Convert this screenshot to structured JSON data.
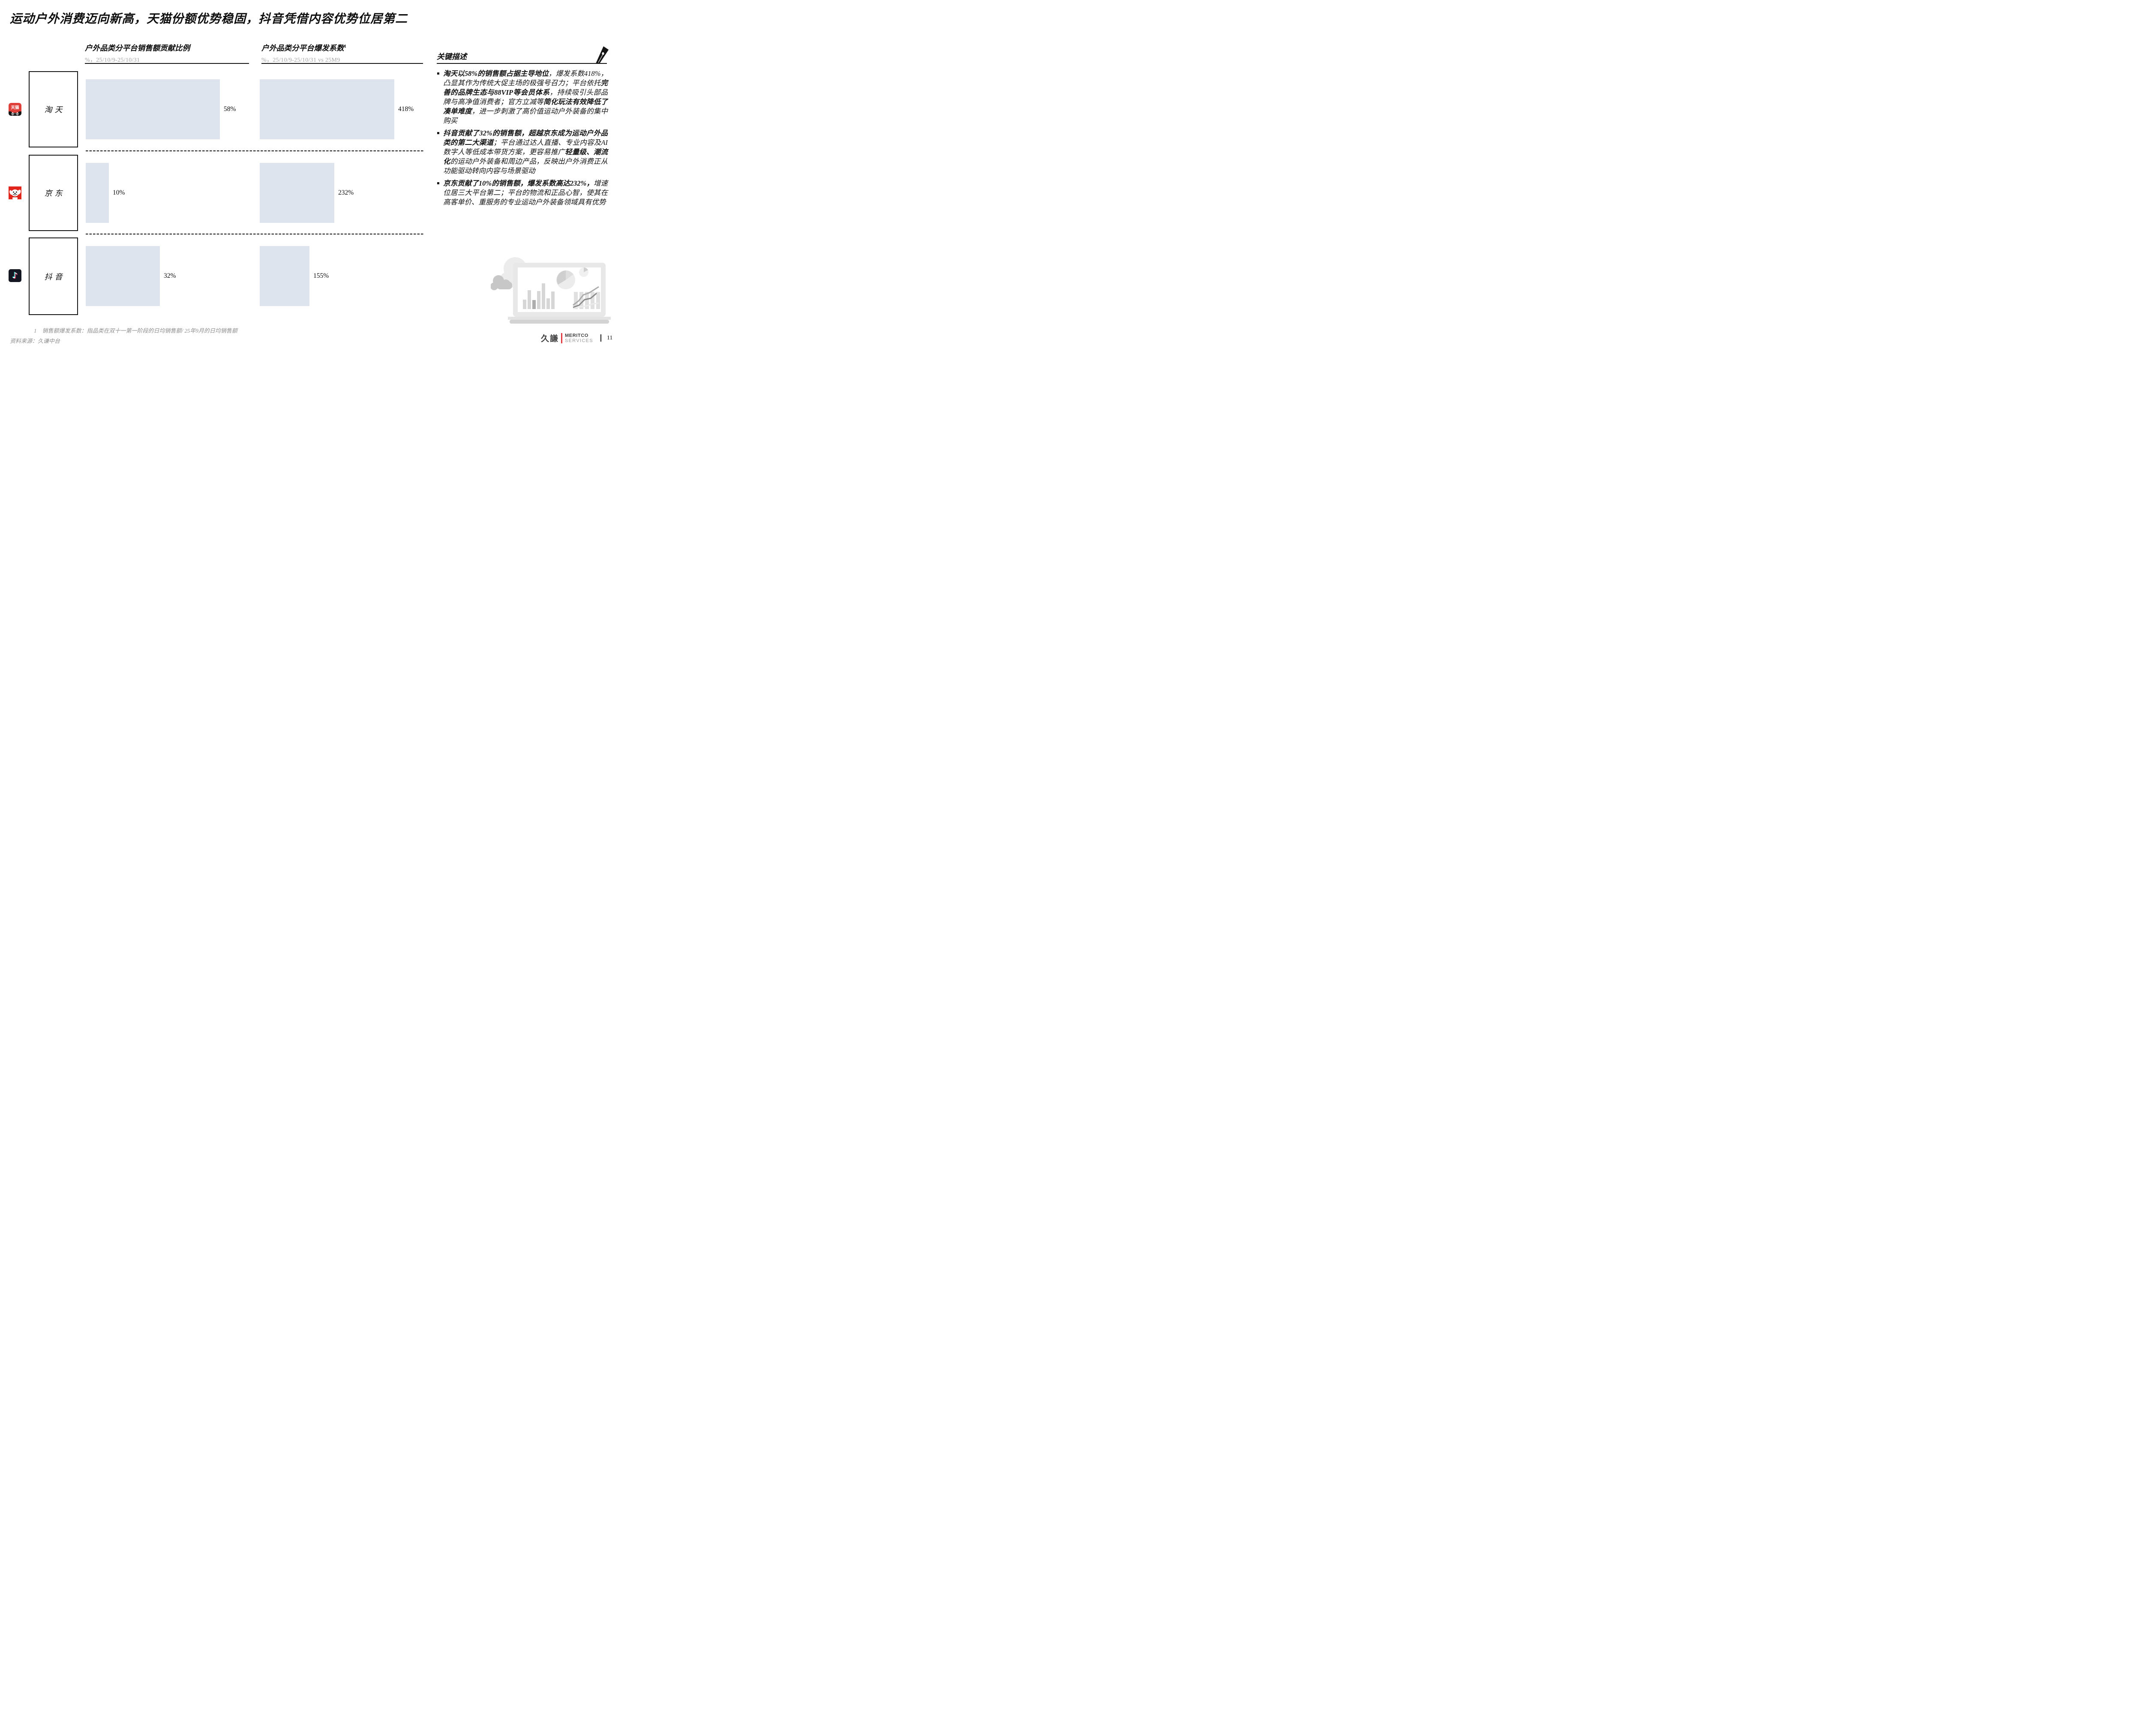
{
  "slide": {
    "title": "运动户外消费迈向新高，天猫份额优势稳固，抖音凭借内容优势位居第二",
    "page_number": "11"
  },
  "charts": {
    "share": {
      "title": "户外品类分平台销售额贡献比例",
      "subtitle": "%，25/10/9-25/10/31"
    },
    "burst": {
      "title": "户外品类分平台爆发系数",
      "title_sup": "1",
      "subtitle": "%，25/10/9-25/10/31 vs 25M9"
    }
  },
  "rows": [
    {
      "platform": "淘天",
      "icon": "tmall-icon",
      "share_label": "58%",
      "burst_label": "418%"
    },
    {
      "platform": "京东",
      "icon": "jd-icon",
      "share_label": "10%",
      "burst_label": "232%"
    },
    {
      "platform": "抖音",
      "icon": "douyin-icon",
      "share_label": "32%",
      "burst_label": "155%"
    }
  ],
  "key_notes": {
    "title": "关键描述",
    "bullets": [
      [
        {
          "t": "淘天以58%的销售额占据主导地位",
          "b": true
        },
        {
          "t": "，爆发系数418%，凸显其作为传统大促主场的极强号召力；平台依托",
          "b": false
        },
        {
          "t": "完善的品牌生态与88VIP等会员体系",
          "b": true
        },
        {
          "t": "，持续吸引头部品牌与高净值消费者；官方立减等",
          "b": false
        },
        {
          "t": "简化玩法有效降低了凑单难度",
          "b": true
        },
        {
          "t": "，进一步刺激了高价值运动户外装备的集中购买",
          "b": false
        }
      ],
      [
        {
          "t": "抖音贡献了32%的销售额，超越京东成为运动户外品类的第二大渠道",
          "b": true
        },
        {
          "t": "；平台通过达人直播、专业内容及AI数字人等低成本带货方案，更容易推广",
          "b": false
        },
        {
          "t": "轻量级、潮流化",
          "b": true
        },
        {
          "t": "的运动户外装备和周边产品，反映出户外消费正从功能驱动转向内容与场景驱动",
          "b": false
        }
      ],
      [
        {
          "t": "京东贡献了10%的销售额，爆发系数高达232%，",
          "b": true
        },
        {
          "t": "增速位居三大平台第二；平台的物流和正品心智，使其在高客单价、重服务的专业运动户外装备领域具有优势",
          "b": false
        }
      ]
    ]
  },
  "footnote": "1    销售额爆发系数：指品类在双十一第一阶段的日均销售额/ 25年9月的日均销售额",
  "source": "资料来源：久谦中台",
  "logo": {
    "cn": "久謙",
    "primary": "MERITCO",
    "secondary": "SERVICES"
  },
  "icon_labels": {
    "tmall_text": "天猫",
    "douyin_note": "♪"
  },
  "colors": {
    "bar_fill": "#dee4ee",
    "tmall_red": "#e0403a",
    "jd_red": "#e1251b",
    "douyin_dark": "#141722",
    "logo_red": "#e0393f",
    "text": "#141414",
    "muted_gray": "#8f8f8f"
  },
  "chart_data": [
    {
      "type": "bar",
      "orientation": "horizontal",
      "title": "户外品类分平台销售额贡献比例",
      "unit": "%",
      "period": "25/10/9-25/10/31",
      "categories": [
        "淘天",
        "京东",
        "抖音"
      ],
      "values": [
        58,
        10,
        32
      ],
      "value_labels": [
        "58%",
        "10%",
        "32%"
      ],
      "xlim": [
        0,
        65
      ],
      "grid": false,
      "legend": "none"
    },
    {
      "type": "bar",
      "orientation": "horizontal",
      "title": "户外品类分平台爆发系数",
      "footnote_ref": "1",
      "unit": "%",
      "period": "25/10/9-25/10/31 vs 25M9",
      "categories": [
        "淘天",
        "京东",
        "抖音"
      ],
      "values": [
        418,
        232,
        155
      ],
      "value_labels": [
        "418%",
        "232%",
        "155%"
      ],
      "xlim": [
        0,
        450
      ],
      "grid": false,
      "legend": "none"
    }
  ]
}
